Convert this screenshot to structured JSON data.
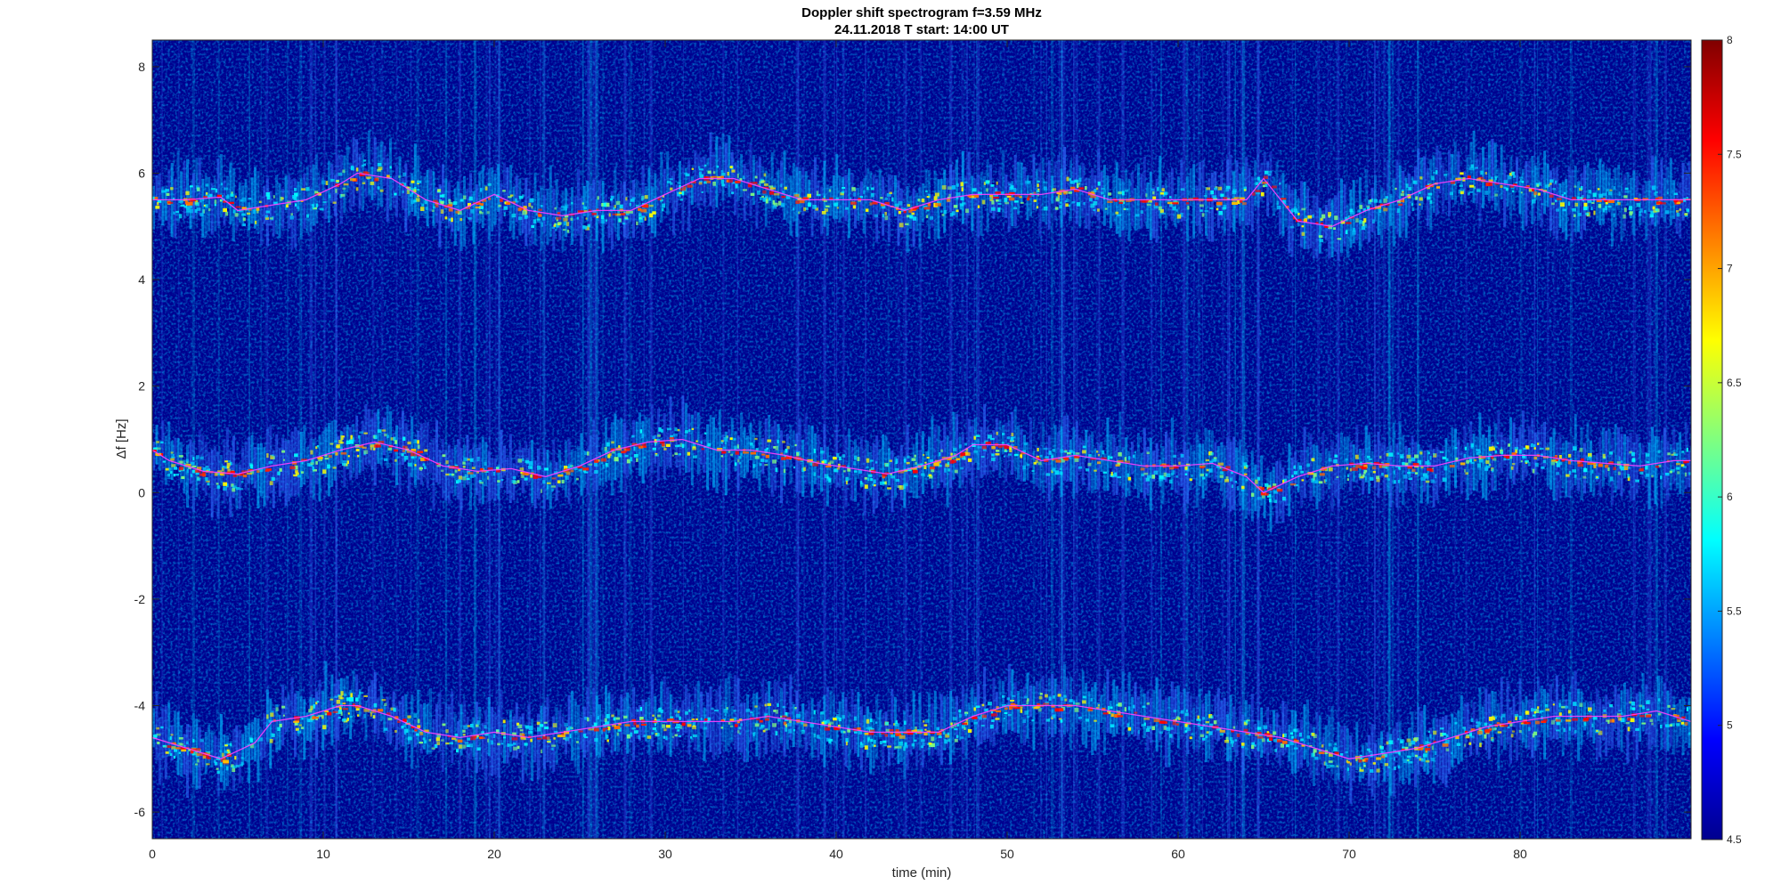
{
  "chart_data": {
    "type": "heatmap",
    "title": "Doppler shift spectrogram f=3.59 MHz",
    "subtitle": "24.11.2018   T start: 14:00 UT",
    "xlabel": "time (min)",
    "ylabel": "Δf [Hz]",
    "xlim": [
      0,
      90
    ],
    "ylim": [
      -6.5,
      8.5
    ],
    "xticks": [
      "0",
      "10",
      "20",
      "30",
      "40",
      "50",
      "60",
      "70",
      "80"
    ],
    "yticks": [
      "-6",
      "-4",
      "-2",
      "0",
      "2",
      "4",
      "6",
      "8"
    ],
    "colorbar": {
      "range": [
        4.5,
        8
      ],
      "ticks": [
        "4.5",
        "5",
        "5.5",
        "6",
        "6.5",
        "7",
        "7.5",
        "8"
      ],
      "colormap": "jet"
    },
    "series": [
      {
        "x": [
          0,
          2,
          4,
          5,
          7,
          9,
          11,
          12,
          14,
          16,
          18,
          20,
          22,
          24,
          26,
          28,
          30,
          32,
          34,
          36,
          38,
          40,
          42,
          44,
          46,
          48,
          50,
          52,
          54,
          56,
          58,
          60,
          62,
          64,
          65,
          67,
          69,
          71,
          73,
          75,
          77,
          79,
          81,
          83,
          85,
          87,
          89,
          90
        ],
        "values": [
          5.5,
          5.5,
          5.55,
          5.3,
          5.4,
          5.5,
          5.8,
          6.0,
          5.9,
          5.5,
          5.3,
          5.6,
          5.3,
          5.2,
          5.3,
          5.3,
          5.6,
          5.9,
          5.9,
          5.7,
          5.5,
          5.5,
          5.5,
          5.3,
          5.5,
          5.6,
          5.6,
          5.6,
          5.7,
          5.5,
          5.5,
          5.5,
          5.5,
          5.5,
          5.9,
          5.1,
          5.0,
          5.3,
          5.5,
          5.8,
          5.9,
          5.8,
          5.7,
          5.5,
          5.5,
          5.5,
          5.5,
          5.5
        ]
      },
      {
        "x": [
          0,
          1,
          3,
          5,
          7,
          9,
          11,
          13,
          15,
          17,
          19,
          21,
          23,
          25,
          27,
          29,
          31,
          33,
          35,
          37,
          39,
          41,
          43,
          45,
          47,
          48,
          50,
          52,
          54,
          56,
          58,
          60,
          62,
          64,
          65,
          67,
          69,
          71,
          73,
          75,
          77,
          79,
          81,
          83,
          85,
          87,
          89,
          90
        ],
        "values": [
          0.8,
          0.6,
          0.4,
          0.35,
          0.5,
          0.6,
          0.8,
          0.95,
          0.8,
          0.5,
          0.4,
          0.45,
          0.3,
          0.5,
          0.8,
          0.95,
          1.0,
          0.8,
          0.8,
          0.7,
          0.55,
          0.45,
          0.35,
          0.5,
          0.7,
          0.9,
          0.9,
          0.6,
          0.7,
          0.6,
          0.5,
          0.5,
          0.55,
          0.3,
          0.0,
          0.3,
          0.5,
          0.55,
          0.5,
          0.5,
          0.65,
          0.7,
          0.7,
          0.6,
          0.55,
          0.5,
          0.6,
          0.6
        ]
      },
      {
        "x": [
          0,
          2,
          4,
          6,
          7,
          9,
          11,
          12,
          14,
          16,
          18,
          20,
          22,
          24,
          26,
          28,
          30,
          32,
          34,
          36,
          38,
          40,
          42,
          44,
          46,
          48,
          50,
          52,
          54,
          56,
          58,
          60,
          62,
          64,
          66,
          68,
          70,
          72,
          74,
          76,
          78,
          80,
          82,
          84,
          86,
          88,
          90
        ],
        "values": [
          -4.6,
          -4.8,
          -5.0,
          -4.7,
          -4.3,
          -4.2,
          -4.0,
          -4.0,
          -4.2,
          -4.5,
          -4.6,
          -4.5,
          -4.6,
          -4.5,
          -4.4,
          -4.3,
          -4.3,
          -4.3,
          -4.3,
          -4.2,
          -4.3,
          -4.4,
          -4.5,
          -4.5,
          -4.5,
          -4.2,
          -4.0,
          -4.0,
          -4.0,
          -4.1,
          -4.2,
          -4.3,
          -4.4,
          -4.5,
          -4.6,
          -4.8,
          -5.0,
          -4.9,
          -4.8,
          -4.6,
          -4.4,
          -4.3,
          -4.2,
          -4.2,
          -4.2,
          -4.1,
          -4.3
        ]
      }
    ]
  }
}
